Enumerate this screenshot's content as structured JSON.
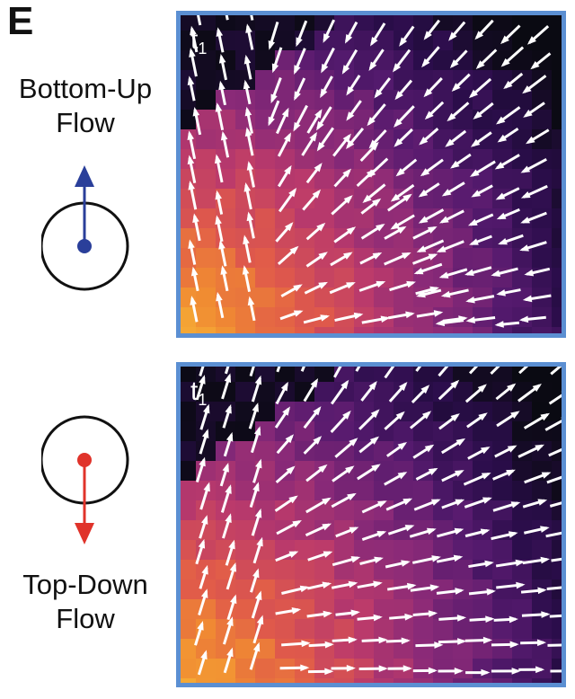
{
  "panel": {
    "letter": "E"
  },
  "bottom_up": {
    "label_line1": "Bottom-Up",
    "label_line2": "Flow",
    "icon": "circle-with-up-arrow",
    "color": "#2a3f9a",
    "direction": "up"
  },
  "top_down": {
    "label_line1": "Top-Down",
    "label_line2": "Flow",
    "icon": "circle-with-down-arrow",
    "color": "#e0332a",
    "direction": "down"
  },
  "fields": [
    {
      "time_label": "t",
      "time_subscript": "1",
      "flow": "bottom-up"
    },
    {
      "time_label": "t",
      "time_subscript": "1",
      "flow": "top-down"
    }
  ],
  "colors": {
    "frame": "#5b8fd2",
    "arrow": "#ffffff",
    "heat_palette": [
      "#0a0a12",
      "#2a0d4a",
      "#551a6e",
      "#8a2a78",
      "#bb3a6b",
      "#e05a4a",
      "#f08a32",
      "#f7b236"
    ]
  }
}
